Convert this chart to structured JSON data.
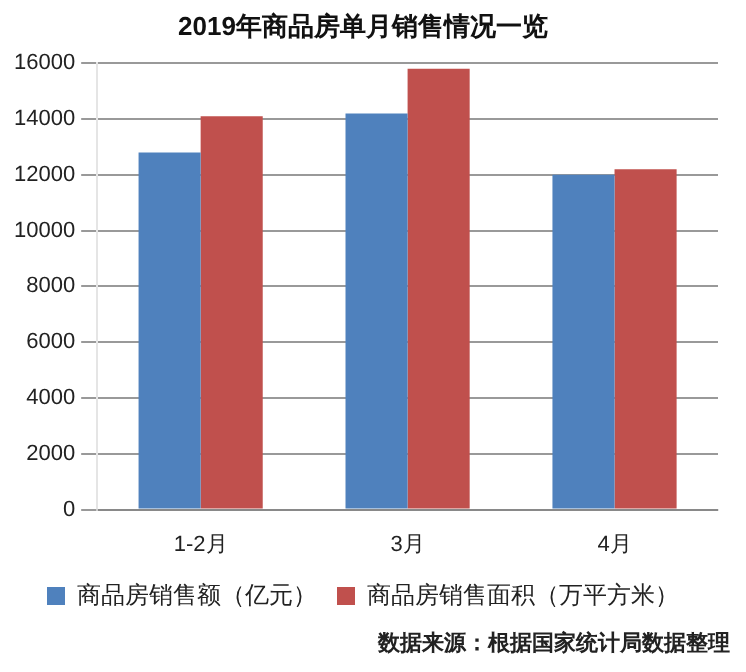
{
  "chart_data": {
    "type": "bar",
    "title": "2019年商品房单月销售情况一览",
    "categories": [
      "1-2月",
      "3月",
      "4月"
    ],
    "series": [
      {
        "name": "商品房销售额（亿元）",
        "color": "#4f81bd",
        "values": [
          12800,
          14200,
          12000
        ]
      },
      {
        "name": "商品房销售面积（万平方米）",
        "color": "#c0504d",
        "values": [
          14100,
          15800,
          12200
        ]
      }
    ],
    "ylim": [
      0,
      16000
    ],
    "yticks": [
      0,
      2000,
      4000,
      6000,
      8000,
      10000,
      12000,
      14000,
      16000
    ],
    "grid": "y",
    "legend": "bottom",
    "annotations": [
      "数据来源：根据国家统计局数据整理"
    ]
  }
}
